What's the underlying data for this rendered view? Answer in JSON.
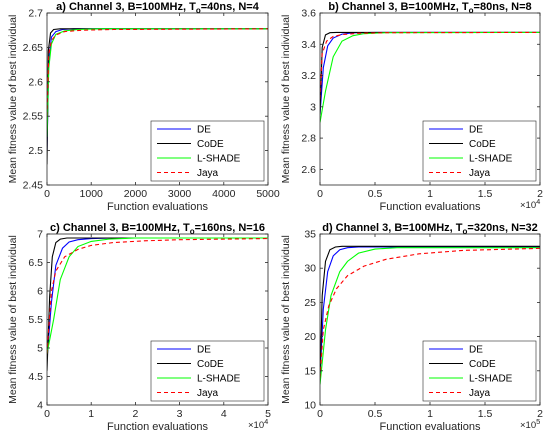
{
  "colors": {
    "DE": "#0000ff",
    "CoDE": "#000000",
    "L-SHADE": "#00ff00",
    "Jaya": "#ff0000",
    "axis": "#262626",
    "grid_bg": "#ffffff"
  },
  "legend": {
    "entries": [
      "DE",
      "CoDE",
      "L-SHADE",
      "Jaya"
    ],
    "placement": "bottom-right"
  },
  "chart_data": [
    {
      "type": "line",
      "title_main": "a) Channel 3, B=100MHz, T",
      "title_sub": "o",
      "title_tail": "=40ns, N=4",
      "xlabel": "Function evaluations",
      "ylabel": "Mean fitness value of best individual",
      "xlim": [
        0,
        5000
      ],
      "ylim": [
        2.45,
        2.7
      ],
      "xticks": [
        0,
        1000,
        2000,
        3000,
        4000,
        5000
      ],
      "xtick_labels": [
        "0",
        "1000",
        "2000",
        "3000",
        "4000",
        "5000"
      ],
      "yticks": [
        2.45,
        2.5,
        2.55,
        2.6,
        2.65,
        2.7
      ],
      "ytick_labels": [
        "2.45",
        "2.5",
        "2.55",
        "2.6",
        "2.65",
        "2.7"
      ],
      "exponent_label": "",
      "series": [
        {
          "name": "DE",
          "x": [
            0,
            40,
            100,
            200,
            350,
            600,
            1000,
            5000
          ],
          "y": [
            2.5,
            2.63,
            2.665,
            2.673,
            2.676,
            2.677,
            2.677,
            2.677
          ]
        },
        {
          "name": "CoDE",
          "x": [
            0,
            30,
            80,
            150,
            300,
            500,
            1000,
            5000
          ],
          "y": [
            2.48,
            2.645,
            2.671,
            2.676,
            2.677,
            2.677,
            2.677,
            2.677
          ]
        },
        {
          "name": "L-SHADE",
          "x": [
            0,
            40,
            100,
            200,
            400,
            700,
            1200,
            5000
          ],
          "y": [
            2.52,
            2.62,
            2.655,
            2.669,
            2.674,
            2.676,
            2.677,
            2.677
          ]
        },
        {
          "name": "Jaya",
          "x": [
            0,
            40,
            100,
            200,
            400,
            800,
            1500,
            5000
          ],
          "y": [
            2.55,
            2.64,
            2.66,
            2.668,
            2.673,
            2.675,
            2.676,
            2.677
          ]
        }
      ]
    },
    {
      "type": "line",
      "title_main": "b) Channel 3, B=100MHz, T",
      "title_sub": "o",
      "title_tail": "=80ns, N=8",
      "xlabel": "Function evaluations",
      "ylabel": "Mean fitness value of best individual",
      "xlim": [
        0,
        20000
      ],
      "ylim": [
        2.5,
        3.6
      ],
      "xticks": [
        0,
        5000,
        10000,
        15000,
        20000
      ],
      "xtick_labels": [
        "0",
        "0.5",
        "1",
        "1.5",
        "2"
      ],
      "yticks": [
        2.6,
        2.8,
        3.0,
        3.2,
        3.4,
        3.6
      ],
      "ytick_labels": [
        "2.6",
        "2.8",
        "3",
        "3.2",
        "3.4",
        "3.6"
      ],
      "exponent_label": "×10",
      "exponent_power": "4",
      "series": [
        {
          "name": "DE",
          "x": [
            0,
            300,
            700,
            1200,
            2000,
            3000,
            5000,
            20000
          ],
          "y": [
            2.95,
            3.25,
            3.39,
            3.44,
            3.465,
            3.473,
            3.476,
            3.476
          ]
        },
        {
          "name": "CoDE",
          "x": [
            0,
            200,
            500,
            900,
            1500,
            2500,
            4000,
            20000
          ],
          "y": [
            2.95,
            3.38,
            3.46,
            3.474,
            3.476,
            3.476,
            3.476,
            3.476
          ]
        },
        {
          "name": "L-SHADE",
          "x": [
            0,
            500,
            1200,
            2000,
            3000,
            4000,
            6000,
            20000
          ],
          "y": [
            2.9,
            3.1,
            3.32,
            3.42,
            3.455,
            3.468,
            3.474,
            3.476
          ]
        },
        {
          "name": "Jaya",
          "x": [
            0,
            200,
            600,
            1200,
            2000,
            3500,
            6000,
            20000
          ],
          "y": [
            3.05,
            3.34,
            3.42,
            3.45,
            3.462,
            3.47,
            3.474,
            3.476
          ]
        }
      ]
    },
    {
      "type": "line",
      "title_main": "c) Channel 3, B=100MHz, T",
      "title_sub": "o",
      "title_tail": "=160ns, N=16",
      "xlabel": "Function evaluations",
      "ylabel": "Mean fitness value of best individual",
      "xlim": [
        0,
        50000
      ],
      "ylim": [
        4,
        7
      ],
      "xticks": [
        0,
        10000,
        20000,
        30000,
        40000,
        50000
      ],
      "xtick_labels": [
        "0",
        "1",
        "2",
        "3",
        "4",
        "5"
      ],
      "yticks": [
        4,
        4.5,
        5,
        5.5,
        6,
        6.5,
        7
      ],
      "ytick_labels": [
        "4",
        "4.5",
        "5",
        "5.5",
        "6",
        "6.5",
        "7"
      ],
      "exponent_label": "×10",
      "exponent_power": "4",
      "series": [
        {
          "name": "DE",
          "x": [
            0,
            1000,
            2000,
            3500,
            5000,
            7000,
            10000,
            15000,
            50000
          ],
          "y": [
            4.8,
            5.8,
            6.45,
            6.75,
            6.86,
            6.9,
            6.92,
            6.93,
            6.93
          ]
        },
        {
          "name": "CoDE",
          "x": [
            0,
            600,
            1200,
            2000,
            3000,
            4500,
            7000,
            50000
          ],
          "y": [
            4.6,
            5.9,
            6.6,
            6.85,
            6.91,
            6.93,
            6.93,
            6.93
          ]
        },
        {
          "name": "L-SHADE",
          "x": [
            0,
            1500,
            3000,
            5000,
            7000,
            10000,
            14000,
            20000,
            50000
          ],
          "y": [
            4.9,
            5.5,
            6.2,
            6.6,
            6.78,
            6.87,
            6.91,
            6.93,
            6.93
          ]
        },
        {
          "name": "Jaya",
          "x": [
            0,
            1000,
            2000,
            4000,
            7000,
            10000,
            15000,
            22000,
            30000,
            50000
          ],
          "y": [
            4.9,
            6.0,
            6.35,
            6.6,
            6.73,
            6.8,
            6.85,
            6.88,
            6.9,
            6.92
          ]
        }
      ]
    },
    {
      "type": "line",
      "title_main": "d) Channel 3, B=100MHz, T",
      "title_sub": "o",
      "title_tail": "=320ns, N=32",
      "xlabel": "Function evaluations",
      "ylabel": "Mean fitness value of best individual",
      "xlim": [
        0,
        200000
      ],
      "ylim": [
        10,
        35
      ],
      "xticks": [
        0,
        50000,
        100000,
        150000,
        200000
      ],
      "xtick_labels": [
        "0",
        "0.5",
        "1",
        "1.5",
        "2"
      ],
      "yticks": [
        10,
        15,
        20,
        25,
        30,
        35
      ],
      "ytick_labels": [
        "10",
        "15",
        "20",
        "25",
        "30",
        "35"
      ],
      "exponent_label": "×10",
      "exponent_power": "5",
      "series": [
        {
          "name": "DE",
          "x": [
            0,
            3000,
            7000,
            12000,
            18000,
            25000,
            35000,
            50000,
            200000
          ],
          "y": [
            14,
            24,
            29.5,
            31.8,
            32.7,
            33.0,
            33.1,
            33.1,
            33.1
          ]
        },
        {
          "name": "CoDE",
          "x": [
            0,
            2000,
            5000,
            9000,
            14000,
            20000,
            30000,
            200000
          ],
          "y": [
            14,
            26,
            31,
            32.7,
            33.1,
            33.2,
            33.2,
            33.2
          ]
        },
        {
          "name": "L-SHADE",
          "x": [
            0,
            5000,
            10000,
            18000,
            25000,
            35000,
            50000,
            70000,
            200000
          ],
          "y": [
            13,
            21,
            26,
            29.5,
            31,
            32.2,
            32.8,
            33.0,
            33.0
          ]
        },
        {
          "name": "Jaya",
          "x": [
            0,
            3000,
            8000,
            15000,
            25000,
            40000,
            60000,
            90000,
            130000,
            200000
          ],
          "y": [
            14,
            21,
            24.5,
            27,
            28.9,
            30.3,
            31.3,
            32.1,
            32.6,
            32.9
          ]
        }
      ]
    }
  ]
}
